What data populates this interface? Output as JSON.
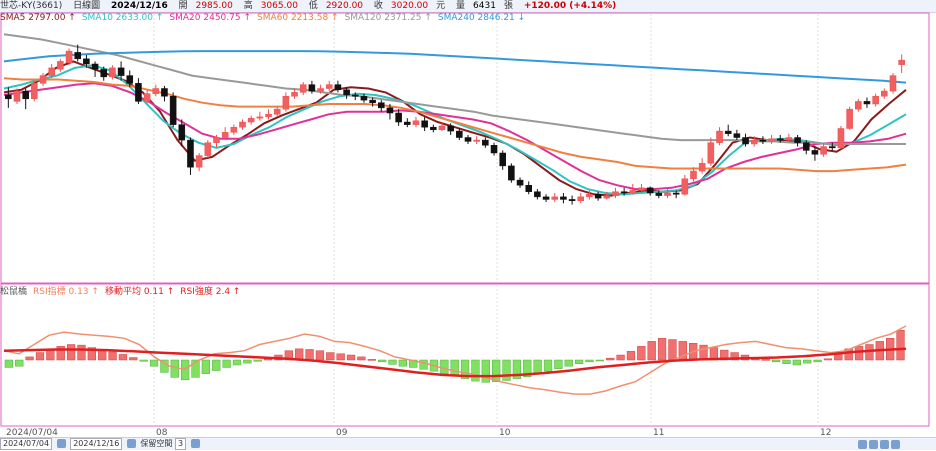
{
  "header": {
    "stock": "世芯-KY(3661)",
    "period": "日線圖",
    "date": "2024/12/16",
    "open_label": "開",
    "open": "2985.00",
    "high_label": "高",
    "high": "3065.00",
    "low_label": "低",
    "low": "2920.00",
    "close_label": "收",
    "close": "3020.00",
    "close_unit": "元",
    "volume_label": "量",
    "volume": "6431",
    "volume_unit": "張",
    "change": "+120.00 (+4.14%)"
  },
  "ma_legend": [
    {
      "label": "SMA5",
      "value": "2797.00",
      "arrow": "↑",
      "color": "#8b1a1a"
    },
    {
      "label": "SMA10",
      "value": "2633.00",
      "arrow": "↑",
      "color": "#2ec4c4"
    },
    {
      "label": "SMA20",
      "value": "2450.75",
      "arrow": "↑",
      "color": "#e0309a"
    },
    {
      "label": "SMA60",
      "value": "2213.58",
      "arrow": "↑",
      "color": "#f08040"
    },
    {
      "label": "SMA120",
      "value": "2371.25",
      "arrow": "↑",
      "color": "#999999"
    },
    {
      "label": "SMA240",
      "value": "2846.21",
      "arrow": "↓",
      "color": "#3399dd"
    }
  ],
  "ind_legend": [
    {
      "label": "松鼠橋",
      "value": "",
      "arrow": "",
      "color": "#555555"
    },
    {
      "label": "RSI指標",
      "value": "0.13",
      "arrow": "↑",
      "color": "#f08060"
    },
    {
      "label": "移動平均",
      "value": "0.11",
      "arrow": "↑",
      "color": "#e02020"
    },
    {
      "label": "RSI強度",
      "value": "2.4",
      "arrow": "↑",
      "color": "#e02020"
    }
  ],
  "x_axis_labels": [
    "2024/07/04",
    "08",
    "09",
    "10",
    "11",
    "12"
  ],
  "footer": {
    "start_date": "2024/07/04",
    "end_date": "2024/12/16",
    "keep_label": "保留空間",
    "keep_value": "3"
  },
  "chart_data": {
    "type": "candlestick",
    "ylim": [
      1300,
      3300
    ],
    "candles": [
      [
        2750,
        2720,
        2810,
        2650
      ],
      [
        2700,
        2780,
        2800,
        2680
      ],
      [
        2780,
        2720,
        2800,
        2640
      ],
      [
        2720,
        2840,
        2860,
        2700
      ],
      [
        2840,
        2900,
        2920,
        2820
      ],
      [
        2900,
        2960,
        2990,
        2880
      ],
      [
        2950,
        3010,
        3030,
        2930
      ],
      [
        3000,
        3090,
        3110,
        2980
      ],
      [
        3080,
        3030,
        3140,
        3010
      ],
      [
        3030,
        2990,
        3060,
        2960
      ],
      [
        2990,
        2950,
        3010,
        2890
      ],
      [
        2950,
        2890,
        2970,
        2860
      ],
      [
        2890,
        2960,
        2980,
        2870
      ],
      [
        2960,
        2900,
        3010,
        2860
      ],
      [
        2900,
        2840,
        2940,
        2810
      ],
      [
        2840,
        2700,
        2880,
        2680
      ],
      [
        2700,
        2760,
        2790,
        2680
      ],
      [
        2760,
        2800,
        2830,
        2740
      ],
      [
        2800,
        2740,
        2820,
        2700
      ],
      [
        2740,
        2520,
        2770,
        2500
      ],
      [
        2520,
        2400,
        2560,
        2350
      ],
      [
        2400,
        2190,
        2420,
        2130
      ],
      [
        2190,
        2280,
        2300,
        2160
      ],
      [
        2280,
        2380,
        2400,
        2260
      ],
      [
        2380,
        2420,
        2440,
        2340
      ],
      [
        2420,
        2460,
        2500,
        2400
      ],
      [
        2460,
        2500,
        2520,
        2440
      ],
      [
        2500,
        2540,
        2560,
        2480
      ],
      [
        2540,
        2570,
        2590,
        2520
      ],
      [
        2570,
        2580,
        2620,
        2550
      ],
      [
        2580,
        2600,
        2640,
        2560
      ],
      [
        2600,
        2640,
        2660,
        2580
      ],
      [
        2640,
        2740,
        2770,
        2620
      ],
      [
        2740,
        2770,
        2800,
        2720
      ],
      [
        2770,
        2830,
        2850,
        2750
      ],
      [
        2830,
        2780,
        2860,
        2760
      ],
      [
        2780,
        2800,
        2830,
        2760
      ],
      [
        2800,
        2830,
        2860,
        2780
      ],
      [
        2830,
        2790,
        2860,
        2770
      ],
      [
        2790,
        2750,
        2810,
        2720
      ],
      [
        2750,
        2740,
        2770,
        2710
      ],
      [
        2740,
        2710,
        2760,
        2690
      ],
      [
        2710,
        2690,
        2730,
        2660
      ],
      [
        2690,
        2650,
        2710,
        2620
      ],
      [
        2650,
        2610,
        2680,
        2560
      ],
      [
        2610,
        2540,
        2640,
        2510
      ],
      [
        2540,
        2520,
        2570,
        2500
      ],
      [
        2520,
        2550,
        2580,
        2500
      ],
      [
        2550,
        2500,
        2580,
        2470
      ],
      [
        2500,
        2480,
        2520,
        2460
      ],
      [
        2480,
        2510,
        2540,
        2470
      ],
      [
        2510,
        2470,
        2530,
        2440
      ],
      [
        2470,
        2420,
        2490,
        2400
      ],
      [
        2420,
        2390,
        2440,
        2370
      ],
      [
        2390,
        2400,
        2430,
        2370
      ],
      [
        2400,
        2360,
        2420,
        2340
      ],
      [
        2360,
        2300,
        2380,
        2280
      ],
      [
        2300,
        2200,
        2320,
        2170
      ],
      [
        2200,
        2090,
        2220,
        2070
      ],
      [
        2090,
        2050,
        2110,
        2030
      ],
      [
        2050,
        2000,
        2080,
        1980
      ],
      [
        2000,
        1960,
        2020,
        1940
      ],
      [
        1960,
        1940,
        1980,
        1920
      ],
      [
        1940,
        1960,
        1990,
        1920
      ],
      [
        1960,
        1940,
        1990,
        1910
      ],
      [
        1940,
        1930,
        1970,
        1900
      ],
      [
        1930,
        1960,
        1990,
        1910
      ],
      [
        1960,
        1980,
        2010,
        1940
      ],
      [
        1980,
        1950,
        2000,
        1930
      ],
      [
        1950,
        1970,
        2000,
        1940
      ],
      [
        1970,
        2000,
        2030,
        1950
      ],
      [
        2000,
        1990,
        2030,
        1970
      ],
      [
        1990,
        2010,
        2060,
        1980
      ],
      [
        2010,
        2030,
        2060,
        1990
      ],
      [
        2030,
        1990,
        2040,
        1970
      ],
      [
        1990,
        1970,
        2010,
        1950
      ],
      [
        1970,
        1990,
        2020,
        1950
      ],
      [
        1990,
        1980,
        2010,
        1950
      ],
      [
        1980,
        2100,
        2130,
        1970
      ],
      [
        2100,
        2160,
        2190,
        2080
      ],
      [
        2160,
        2220,
        2260,
        2140
      ],
      [
        2220,
        2380,
        2420,
        2200
      ],
      [
        2380,
        2470,
        2500,
        2360
      ],
      [
        2470,
        2450,
        2520,
        2430
      ],
      [
        2450,
        2420,
        2480,
        2400
      ],
      [
        2420,
        2370,
        2450,
        2350
      ],
      [
        2370,
        2400,
        2430,
        2350
      ],
      [
        2400,
        2390,
        2430,
        2370
      ],
      [
        2390,
        2410,
        2440,
        2370
      ],
      [
        2410,
        2400,
        2440,
        2380
      ],
      [
        2400,
        2420,
        2450,
        2390
      ],
      [
        2420,
        2380,
        2440,
        2350
      ],
      [
        2380,
        2320,
        2400,
        2290
      ],
      [
        2320,
        2290,
        2350,
        2240
      ],
      [
        2290,
        2350,
        2380,
        2270
      ],
      [
        2350,
        2340,
        2380,
        2320
      ],
      [
        2340,
        2490,
        2510,
        2330
      ],
      [
        2490,
        2640,
        2660,
        2480
      ],
      [
        2640,
        2700,
        2720,
        2620
      ],
      [
        2700,
        2680,
        2730,
        2650
      ],
      [
        2680,
        2740,
        2760,
        2660
      ],
      [
        2740,
        2780,
        2800,
        2720
      ],
      [
        2780,
        2900,
        2920,
        2760
      ],
      [
        2985,
        3020,
        3065,
        2920
      ]
    ],
    "ma": [
      {
        "name": "SMA5",
        "color": "#8b1a1a",
        "points": [
          2770,
          2790,
          2860,
          2960,
          3010,
          2960,
          2910,
          2860,
          2770,
          2620,
          2400,
          2240,
          2270,
          2360,
          2440,
          2530,
          2590,
          2640,
          2690,
          2790,
          2810,
          2800,
          2770,
          2700,
          2600,
          2540,
          2500,
          2460,
          2420,
          2370,
          2290,
          2190,
          2090,
          2020,
          1980,
          1970,
          1990,
          2010,
          2000,
          2010,
          2060,
          2210,
          2380,
          2420,
          2400,
          2400,
          2390,
          2330,
          2310,
          2390,
          2560,
          2680,
          2790
        ]
      },
      {
        "name": "SMA10",
        "color": "#2ec4c4",
        "points": [
          2800,
          2830,
          2870,
          2900,
          2960,
          2980,
          2940,
          2830,
          2690,
          2550,
          2450,
          2380,
          2340,
          2370,
          2440,
          2500,
          2580,
          2640,
          2700,
          2740,
          2760,
          2750,
          2720,
          2680,
          2620,
          2560,
          2510,
          2460,
          2400,
          2330,
          2250,
          2170,
          2080,
          2020,
          1990,
          1980,
          1990,
          2000,
          2010,
          2050,
          2150,
          2280,
          2390,
          2400,
          2410,
          2400,
          2380,
          2360,
          2380,
          2440,
          2520,
          2600
        ]
      },
      {
        "name": "SMA20",
        "color": "#e0309a",
        "points": [
          2750,
          2770,
          2790,
          2810,
          2830,
          2840,
          2820,
          2770,
          2700,
          2610,
          2530,
          2450,
          2410,
          2410,
          2440,
          2480,
          2520,
          2560,
          2600,
          2620,
          2620,
          2620,
          2630,
          2620,
          2600,
          2580,
          2560,
          2530,
          2470,
          2400,
          2320,
          2240,
          2160,
          2090,
          2050,
          2020,
          2020,
          2030,
          2060,
          2100,
          2180,
          2230,
          2270,
          2300,
          2330,
          2370,
          2380,
          2380,
          2390,
          2410,
          2450
        ]
      },
      {
        "name": "SMA60",
        "color": "#f08040",
        "points": [
          2880,
          2870,
          2870,
          2870,
          2860,
          2850,
          2830,
          2820,
          2790,
          2760,
          2720,
          2690,
          2670,
          2660,
          2660,
          2660,
          2660,
          2670,
          2680,
          2680,
          2680,
          2670,
          2650,
          2620,
          2580,
          2540,
          2500,
          2460,
          2420,
          2380,
          2340,
          2300,
          2270,
          2250,
          2230,
          2200,
          2190,
          2180,
          2180,
          2180,
          2180,
          2180,
          2180,
          2180,
          2170,
          2160,
          2160,
          2170,
          2180,
          2190,
          2210
        ]
      },
      {
        "name": "SMA120",
        "color": "#999999",
        "points": [
          3220,
          3200,
          3180,
          3150,
          3120,
          3090,
          3060,
          3020,
          2980,
          2940,
          2900,
          2880,
          2860,
          2840,
          2820,
          2800,
          2790,
          2770,
          2750,
          2740,
          2720,
          2700,
          2680,
          2660,
          2640,
          2620,
          2590,
          2570,
          2550,
          2530,
          2510,
          2490,
          2470,
          2450,
          2430,
          2410,
          2400,
          2400,
          2400,
          2400,
          2390,
          2390,
          2380,
          2380,
          2370,
          2370,
          2370,
          2370,
          2370
        ]
      },
      {
        "name": "SMA240",
        "color": "#3399dd",
        "points": [
          3010,
          3030,
          3050,
          3060,
          3070,
          3075,
          3080,
          3085,
          3088,
          3090,
          3090,
          3090,
          3090,
          3090,
          3088,
          3085,
          3080,
          3075,
          3070,
          3060,
          3050,
          3040,
          3030,
          3020,
          3010,
          3000,
          2990,
          2980,
          2970,
          2960,
          2950,
          2940,
          2930,
          2920,
          2910,
          2900,
          2890,
          2880,
          2870,
          2860,
          2846
        ]
      }
    ],
    "oscillator": {
      "ylim": [
        -1,
        1
      ],
      "histogram": [
        -0.12,
        -0.1,
        0.05,
        0.12,
        0.18,
        0.22,
        0.25,
        0.24,
        0.2,
        0.16,
        0.13,
        0.09,
        0.04,
        -0.02,
        -0.1,
        -0.2,
        -0.28,
        -0.32,
        -0.28,
        -0.22,
        -0.17,
        -0.12,
        -0.08,
        -0.05,
        -0.02,
        0.02,
        0.08,
        0.15,
        0.18,
        0.17,
        0.15,
        0.12,
        0.1,
        0.08,
        0.05,
        0.01,
        -0.03,
        -0.07,
        -0.1,
        -0.12,
        -0.15,
        -0.18,
        -0.22,
        -0.25,
        -0.3,
        -0.34,
        -0.36,
        -0.35,
        -0.33,
        -0.3,
        -0.27,
        -0.23,
        -0.18,
        -0.14,
        -0.1,
        -0.06,
        -0.03,
        -0.01,
        0.03,
        0.08,
        0.14,
        0.22,
        0.3,
        0.35,
        0.33,
        0.3,
        0.27,
        0.24,
        0.2,
        0.16,
        0.12,
        0.08,
        0.04,
        0.01,
        -0.03,
        -0.06,
        -0.08,
        -0.05,
        -0.03,
        0.02,
        0.12,
        0.18,
        0.22,
        0.25,
        0.3,
        0.35,
        0.48
      ],
      "k": [
        0.15,
        0.1,
        0.25,
        0.4,
        0.45,
        0.42,
        0.4,
        0.38,
        0.35,
        0.25,
        0.05,
        -0.1,
        -0.15,
        0.0,
        0.1,
        0.12,
        0.15,
        0.25,
        0.3,
        0.35,
        0.42,
        0.38,
        0.3,
        0.28,
        0.22,
        0.15,
        0.05,
        0.0,
        -0.05,
        -0.12,
        -0.18,
        -0.22,
        -0.28,
        -0.35,
        -0.4,
        -0.45,
        -0.48,
        -0.52,
        -0.55,
        -0.55,
        -0.5,
        -0.42,
        -0.35,
        -0.2,
        -0.05,
        0.05,
        0.15,
        0.2,
        0.25,
        0.28,
        0.3,
        0.25,
        0.2,
        0.18,
        0.15,
        0.12,
        0.15,
        0.25,
        0.35,
        0.42,
        0.55
      ],
      "d": [
        0.15,
        0.16,
        0.17,
        0.17,
        0.16,
        0.14,
        0.12,
        0.1,
        0.08,
        0.06,
        0.04,
        0.02,
        -0.01,
        -0.05,
        -0.1,
        -0.15,
        -0.2,
        -0.24,
        -0.26,
        -0.26,
        -0.24,
        -0.21,
        -0.17,
        -0.12,
        -0.08,
        -0.04,
        -0.01,
        0.01,
        0.02,
        0.03,
        0.04,
        0.06,
        0.09,
        0.13,
        0.16,
        0.18
      ]
    }
  }
}
